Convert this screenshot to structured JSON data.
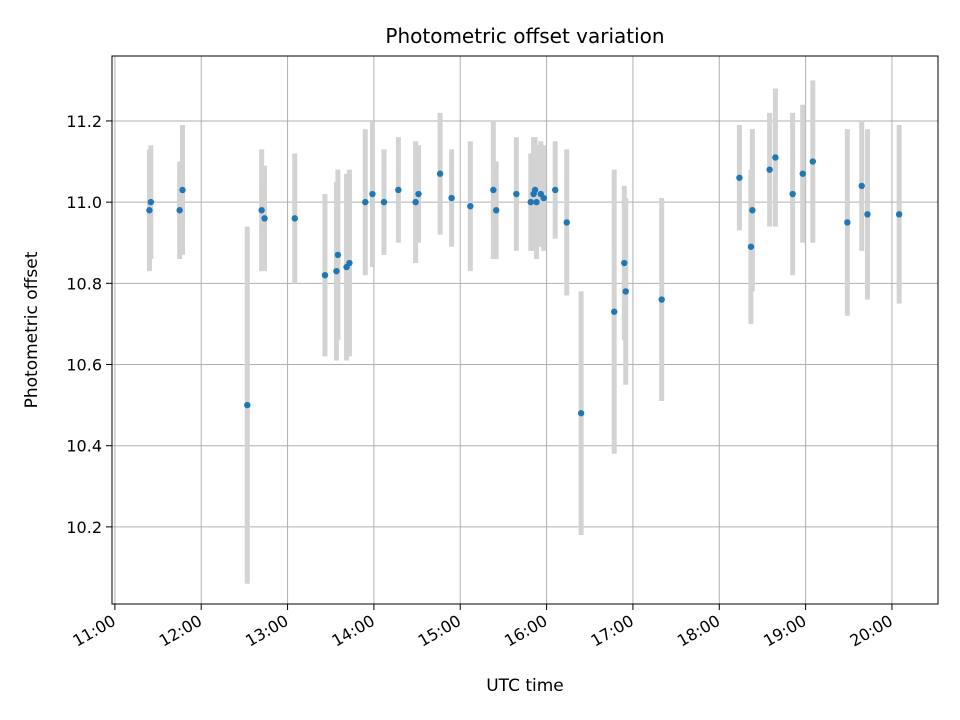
{
  "chart_data": {
    "type": "scatter",
    "title": "Photometric offset variation",
    "xlabel": "UTC time",
    "ylabel": "Photometric offset",
    "x_tick_labels": [
      "11:00",
      "12:00",
      "13:00",
      "14:00",
      "15:00",
      "16:00",
      "17:00",
      "18:00",
      "19:00",
      "20:00"
    ],
    "y_ticks": [
      10.2,
      10.4,
      10.6,
      10.8,
      11.0,
      11.2
    ],
    "y_tick_labels": [
      "10.2",
      "10.4",
      "10.6",
      "10.8",
      "11.0",
      "11.2"
    ],
    "xlim": [
      "10:58",
      "20:32"
    ],
    "ylim": [
      10.01,
      11.36
    ],
    "grid": true,
    "point_color": "#1f77b4",
    "errorbar_color": "#d3d3d3",
    "series": [
      {
        "x": [
          "11:24",
          "11:25",
          "11:45",
          "11:47",
          "12:32",
          "12:42",
          "12:44",
          "13:05",
          "13:26",
          "13:34",
          "13:35",
          "13:41",
          "13:43",
          "13:54",
          "13:59",
          "14:07",
          "14:17",
          "14:29",
          "14:31",
          "14:46",
          "14:54",
          "15:07",
          "15:23",
          "15:25",
          "15:39",
          "15:49",
          "15:51",
          "15:52",
          "15:53",
          "15:56",
          "15:58",
          "16:06",
          "16:14",
          "16:24",
          "16:47",
          "16:54",
          "16:55",
          "17:20",
          "18:14",
          "18:22",
          "18:23",
          "18:35",
          "18:39",
          "18:51",
          "18:58",
          "19:05",
          "19:29",
          "19:39",
          "19:43",
          "20:05"
        ],
        "y": [
          10.98,
          11.0,
          10.98,
          11.03,
          10.5,
          10.98,
          10.96,
          10.96,
          10.82,
          10.83,
          10.87,
          10.84,
          10.85,
          11.0,
          11.02,
          11.0,
          11.03,
          11.0,
          11.02,
          11.07,
          11.01,
          10.99,
          11.03,
          10.98,
          11.02,
          11.0,
          11.02,
          11.03,
          11.0,
          11.02,
          11.01,
          11.03,
          10.95,
          10.48,
          10.73,
          10.85,
          10.78,
          10.76,
          11.06,
          10.89,
          10.98,
          11.08,
          11.11,
          11.02,
          11.07,
          11.1,
          10.95,
          11.04,
          10.97,
          10.97
        ],
        "yerr": [
          0.15,
          0.14,
          0.12,
          0.16,
          0.44,
          0.15,
          0.13,
          0.16,
          0.2,
          0.22,
          0.21,
          0.23,
          0.23,
          0.18,
          0.18,
          0.13,
          0.13,
          0.15,
          0.12,
          0.15,
          0.12,
          0.16,
          0.17,
          0.12,
          0.14,
          0.12,
          0.14,
          0.13,
          0.14,
          0.13,
          0.13,
          0.12,
          0.18,
          0.3,
          0.35,
          0.19,
          0.23,
          0.25,
          0.13,
          0.19,
          0.2,
          0.14,
          0.17,
          0.2,
          0.17,
          0.2,
          0.23,
          0.16,
          0.21,
          0.22
        ]
      }
    ]
  }
}
